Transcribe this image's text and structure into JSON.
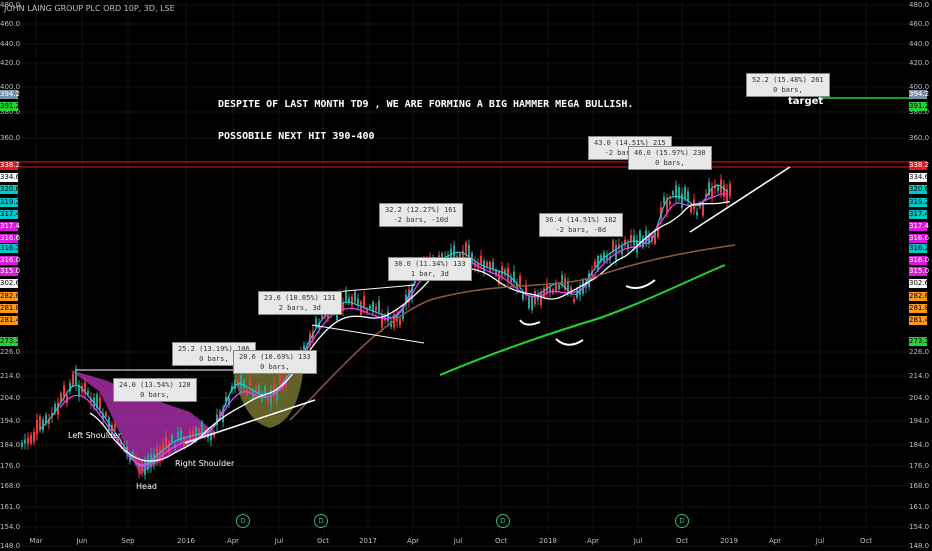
{
  "chart_data": {
    "type": "candlestick",
    "title": "JOHN LAING GROUP PLC ORD 10P, 3D, LSE",
    "y_scale": "piecewise (labels as drawn)",
    "y_ticks": [
      480.0,
      460.0,
      440.0,
      420.0,
      400.0,
      380.0,
      360.0,
      226.0,
      214.0,
      204.0,
      194.0,
      184.0,
      176.0,
      168.0,
      161.0,
      154.0,
      148.0
    ],
    "x_ticks": [
      "Mar",
      "Jun",
      "Sep",
      "2016",
      "Apr",
      "Jul",
      "Oct",
      "2017",
      "Apr",
      "Jul",
      "Oct",
      "2018",
      "Apr",
      "Jul",
      "Oct",
      "2019",
      "Apr",
      "Jul",
      "Oct"
    ],
    "price_labels": [
      {
        "value": "394.2",
        "color": "#7a8fa8"
      },
      {
        "value": "391.2",
        "color": "#22d433"
      },
      {
        "value": "338.2",
        "color": "#e31a1a"
      },
      {
        "value": "334.6",
        "color": "#ffffff"
      },
      {
        "value": "320.6",
        "color": "#00c8c8"
      },
      {
        "value": "319.2",
        "color": "#00c8c8"
      },
      {
        "value": "317.4",
        "color": "#00c8c8"
      },
      {
        "value": "317.4",
        "color": "#d81bd8"
      },
      {
        "value": "316.6",
        "color": "#d81bd8"
      },
      {
        "value": "316.2",
        "color": "#00c8c8"
      },
      {
        "value": "316.0",
        "color": "#d81bd8"
      },
      {
        "value": "315.0",
        "color": "#d81bd8"
      },
      {
        "value": "302.6",
        "color": "#ffffff"
      },
      {
        "value": "282.6",
        "color": "#ff9a1e"
      },
      {
        "value": "281.8",
        "color": "#ff9a1e"
      },
      {
        "value": "281.4",
        "color": "#ff9a1e"
      },
      {
        "value": "273.2",
        "color": "#22d433"
      }
    ],
    "notes": [
      "DESPITE OF LAST MONTH TD9 , WE ARE FORMING A BIG HAMMER MEGA BULLISH.",
      "POSSOBILE NEXT HIT 390-400"
    ],
    "target_label": "target",
    "pattern_labels": [
      "Left Shoulder",
      "Head",
      "Right Shoulder"
    ],
    "measure_boxes": [
      {
        "line1": "24.0 (13.54%) 120",
        "line2": "0 bars,"
      },
      {
        "line1": "25.2 (13.19%) 106",
        "line2": "0 bars,"
      },
      {
        "line1": "20.6 (10.69%) 133",
        "line2": "0 bars,"
      },
      {
        "line1": "23.6 (10.85%) 131",
        "line2": "2 bars, 3d"
      },
      {
        "line1": "32.2 (12.27%) 161",
        "line2": "-2 bars, -10d"
      },
      {
        "line1": "30.0 (11.34%) 133",
        "line2": "1 bar, 3d"
      },
      {
        "line1": "36.4 (14.51%) 182",
        "line2": "-2 bars, -8d"
      },
      {
        "line1": "43.0 (14.51%) 215",
        "line2": "-2 bars, -8d"
      },
      {
        "line1": "46.0 (15.97%) 230",
        "line2": "0 bars,"
      },
      {
        "line1": "52.2 (15.48%) 261",
        "line2": "0 bars,"
      }
    ],
    "dividend_mark": "D",
    "series": [
      {
        "name": "price",
        "type": "candles",
        "color_up": "#26a69a",
        "color_down": "#ef3b3b"
      },
      {
        "type": "ma",
        "color": "#ffffff"
      },
      {
        "type": "ma",
        "color": "#e040fb"
      },
      {
        "type": "ma",
        "color": "#26c6da"
      },
      {
        "type": "ma",
        "color": "#8d5a3b"
      },
      {
        "type": "ma",
        "color": "#22d433"
      }
    ]
  }
}
